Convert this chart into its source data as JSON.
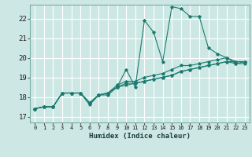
{
  "title": "",
  "xlabel": "Humidex (Indice chaleur)",
  "ylabel": "",
  "bg_color": "#cde8e4",
  "grid_color": "#b8d8d4",
  "line_color": "#1a7a6e",
  "xlim": [
    -0.5,
    23.5
  ],
  "ylim": [
    16.7,
    22.7
  ],
  "xticks": [
    0,
    1,
    2,
    3,
    4,
    5,
    6,
    7,
    8,
    9,
    10,
    11,
    12,
    13,
    14,
    15,
    16,
    17,
    18,
    19,
    20,
    21,
    22,
    23
  ],
  "yticks": [
    17,
    18,
    19,
    20,
    21,
    22
  ],
  "lines": [
    {
      "x": [
        0,
        1,
        2,
        3,
        4,
        5,
        6,
        7,
        8,
        9,
        10,
        11,
        12,
        13,
        14,
        15,
        16,
        17,
        18,
        19,
        20,
        21,
        22,
        23
      ],
      "y": [
        17.4,
        17.5,
        17.5,
        18.2,
        18.2,
        18.2,
        17.6,
        18.1,
        18.1,
        18.5,
        19.4,
        18.5,
        21.9,
        21.3,
        19.8,
        22.6,
        22.5,
        22.1,
        22.1,
        20.5,
        20.2,
        20.0,
        19.7,
        19.8
      ]
    },
    {
      "x": [
        0,
        1,
        2,
        3,
        4,
        5,
        6,
        7,
        8,
        9,
        10,
        11,
        12,
        13,
        14,
        15,
        16,
        17,
        18,
        19,
        20,
        21,
        22,
        23
      ],
      "y": [
        17.4,
        17.5,
        17.5,
        18.2,
        18.2,
        18.2,
        17.7,
        18.1,
        18.2,
        18.6,
        18.8,
        18.8,
        19.0,
        19.1,
        19.2,
        19.4,
        19.6,
        19.6,
        19.7,
        19.8,
        19.9,
        20.0,
        19.8,
        19.8
      ]
    },
    {
      "x": [
        0,
        1,
        2,
        3,
        4,
        5,
        6,
        7,
        8,
        9,
        10,
        11,
        12,
        13,
        14,
        15,
        16,
        17,
        18,
        19,
        20,
        21,
        22,
        23
      ],
      "y": [
        17.4,
        17.5,
        17.5,
        18.2,
        18.2,
        18.2,
        17.7,
        18.1,
        18.2,
        18.5,
        18.7,
        18.7,
        18.8,
        18.9,
        19.0,
        19.1,
        19.3,
        19.4,
        19.5,
        19.6,
        19.7,
        19.8,
        19.8,
        19.8
      ]
    },
    {
      "x": [
        0,
        1,
        2,
        3,
        4,
        5,
        6,
        7,
        8,
        9,
        10,
        11,
        12,
        13,
        14,
        15,
        16,
        17,
        18,
        19,
        20,
        21,
        22,
        23
      ],
      "y": [
        17.4,
        17.5,
        17.5,
        18.2,
        18.2,
        18.2,
        17.7,
        18.1,
        18.2,
        18.5,
        18.6,
        18.7,
        18.8,
        18.9,
        19.0,
        19.1,
        19.3,
        19.4,
        19.5,
        19.6,
        19.7,
        19.8,
        19.7,
        19.7
      ]
    }
  ]
}
